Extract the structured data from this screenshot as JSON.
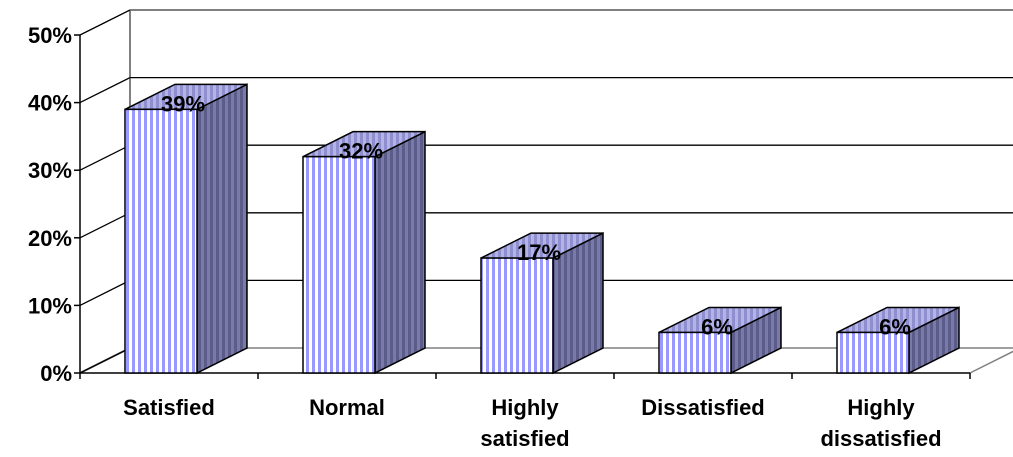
{
  "chart_data": {
    "type": "bar",
    "style": "3d-column",
    "categories": [
      [
        "Satisfied"
      ],
      [
        "Normal"
      ],
      [
        "Highly",
        "satisfied"
      ],
      [
        "Dissatisfied"
      ],
      [
        "Highly",
        "dissatisfied"
      ]
    ],
    "values": [
      39,
      32,
      17,
      6,
      6
    ],
    "data_labels": [
      "39%",
      "32%",
      "17%",
      "6%",
      "6%"
    ],
    "y_ticks": [
      0,
      10,
      20,
      30,
      40,
      50
    ],
    "y_tick_labels": [
      "0%",
      "10%",
      "20%",
      "30%",
      "40%",
      "50%"
    ],
    "ylim": [
      0,
      50
    ],
    "grid": true,
    "legend": "none",
    "colors": {
      "front_base": "#ffffff",
      "front_stripe": "#9999ff",
      "top": "#9999cc",
      "side": "#666699",
      "outline": "#000000",
      "grid": "#000000"
    }
  }
}
